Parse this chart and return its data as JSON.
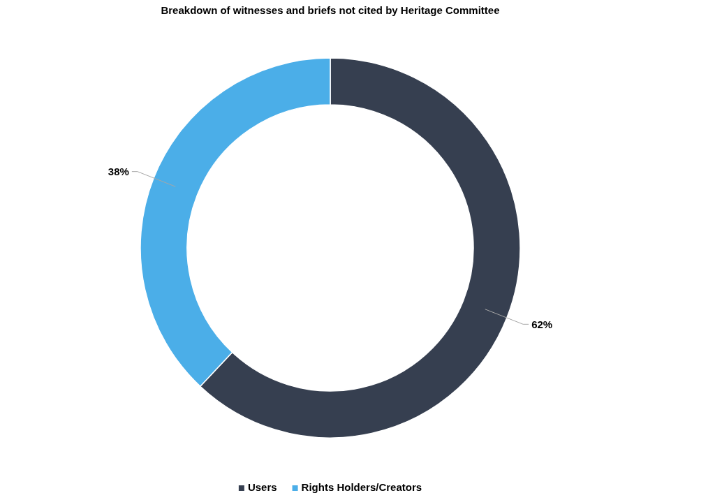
{
  "chart_data": {
    "type": "donut",
    "title": "Breakdown of witnesses and briefs not cited by Heritage Committee",
    "categories": [
      "Users",
      "Rights Holders/Creators"
    ],
    "values": [
      62,
      38
    ],
    "colors": [
      "#363f50",
      "#4baee8"
    ],
    "value_labels": [
      "62%",
      "38%"
    ],
    "legend": "bottom"
  }
}
